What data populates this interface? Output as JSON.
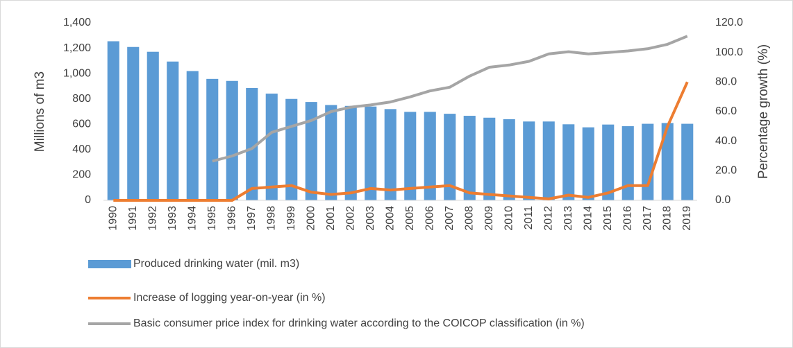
{
  "chart_data": {
    "type": "bar",
    "categories": [
      "1990",
      "1991",
      "1992",
      "1993",
      "1994",
      "1995",
      "1996",
      "1997",
      "1998",
      "1999",
      "2000",
      "2001",
      "2002",
      "2003",
      "2004",
      "2005",
      "2006",
      "2007",
      "2008",
      "2009",
      "2010",
      "2011",
      "2012",
      "2013",
      "2014",
      "2015",
      "2016",
      "2017",
      "2018",
      "2019"
    ],
    "series": [
      {
        "name": "Produced drinking water (mil. m3)",
        "type": "bar",
        "color": "#5b9bd5",
        "values": [
          1255,
          1210,
          1172,
          1095,
          1020,
          958,
          942,
          886,
          842,
          800,
          776,
          752,
          745,
          740,
          720,
          698,
          698,
          683,
          667,
          652,
          640,
          622,
          622,
          600,
          576,
          598,
          585,
          604,
          610,
          604
        ]
      },
      {
        "name": "Increase of logging  year-on-year (in %)",
        "type": "line",
        "axis": "y2",
        "color": "#ed7d31",
        "values": [
          0,
          0,
          0,
          0,
          0,
          0,
          0,
          8,
          9,
          10,
          5.5,
          4,
          5,
          8,
          7,
          8,
          9,
          10,
          5,
          4,
          3,
          2,
          1,
          3.5,
          2,
          5,
          10,
          10,
          50,
          80
        ]
      },
      {
        "name": "Basic consumer price index for drinking water according to the COICOP classification  (in %)",
        "type": "line",
        "axis": "y2",
        "color": "#a5a5a5",
        "values": [
          null,
          null,
          null,
          null,
          null,
          26.5,
          30,
          35,
          46,
          50,
          54,
          60,
          63,
          64.5,
          66.5,
          70,
          74,
          76.5,
          84,
          90,
          91.5,
          94,
          99,
          100.5,
          99,
          100,
          101,
          102.5,
          105.5,
          111
        ]
      }
    ],
    "ylabel": "Millions of m3",
    "y2label": "Percentage growth (%)",
    "ylim": [
      0,
      1400
    ],
    "yticks": [
      0,
      200,
      400,
      600,
      800,
      {
        "value": 1000,
        "label": "1,000"
      },
      {
        "value": 1200,
        "label": "1,200"
      },
      {
        "value": 1400,
        "label": "1,400"
      }
    ],
    "y2lim": [
      0,
      120
    ],
    "y2ticks": [
      {
        "value": 0,
        "label": "0.0"
      },
      {
        "value": 20,
        "label": "20.0"
      },
      {
        "value": 40,
        "label": "40.0"
      },
      {
        "value": 60,
        "label": "60.0"
      },
      {
        "value": 80,
        "label": "80.0"
      },
      {
        "value": 100,
        "label": "100.0"
      },
      {
        "value": 120,
        "label": "120.0"
      }
    ],
    "grid": false,
    "legend": "bottom"
  }
}
